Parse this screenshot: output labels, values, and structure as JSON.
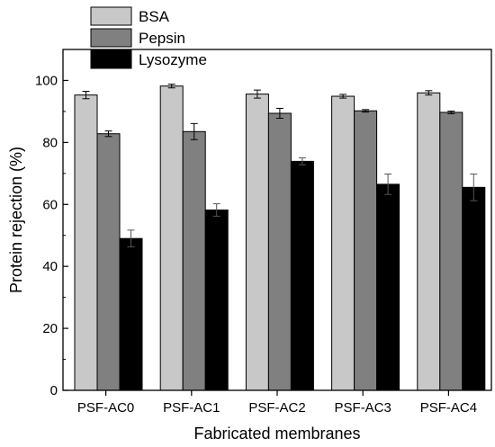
{
  "chart_data": {
    "type": "bar",
    "xlabel": "Fabricated membranes",
    "ylabel": "Protein rejection (%)",
    "ylim": [
      0,
      110
    ],
    "yticks": [
      0,
      20,
      40,
      60,
      80,
      100
    ],
    "grid": false,
    "legend_position": "top-left",
    "categories": [
      "PSF-AC0",
      "PSF-AC1",
      "PSF-AC2",
      "PSF-AC3",
      "PSF-AC4"
    ],
    "series": [
      {
        "name": "BSA",
        "color": "#c8c8c8",
        "values": [
          95.3,
          98.2,
          95.6,
          94.9,
          96.0
        ],
        "errors": [
          1.2,
          0.6,
          1.3,
          0.6,
          0.7
        ]
      },
      {
        "name": "Pepsin",
        "color": "#808080",
        "values": [
          82.8,
          83.5,
          89.4,
          90.2,
          89.7
        ],
        "errors": [
          0.9,
          2.6,
          1.6,
          0.4,
          0.4
        ]
      },
      {
        "name": "Lysozyme",
        "color": "#000000",
        "values": [
          49.0,
          58.2,
          73.9,
          66.5,
          65.5
        ],
        "errors": [
          2.7,
          2.0,
          1.1,
          3.3,
          4.3
        ]
      }
    ]
  }
}
